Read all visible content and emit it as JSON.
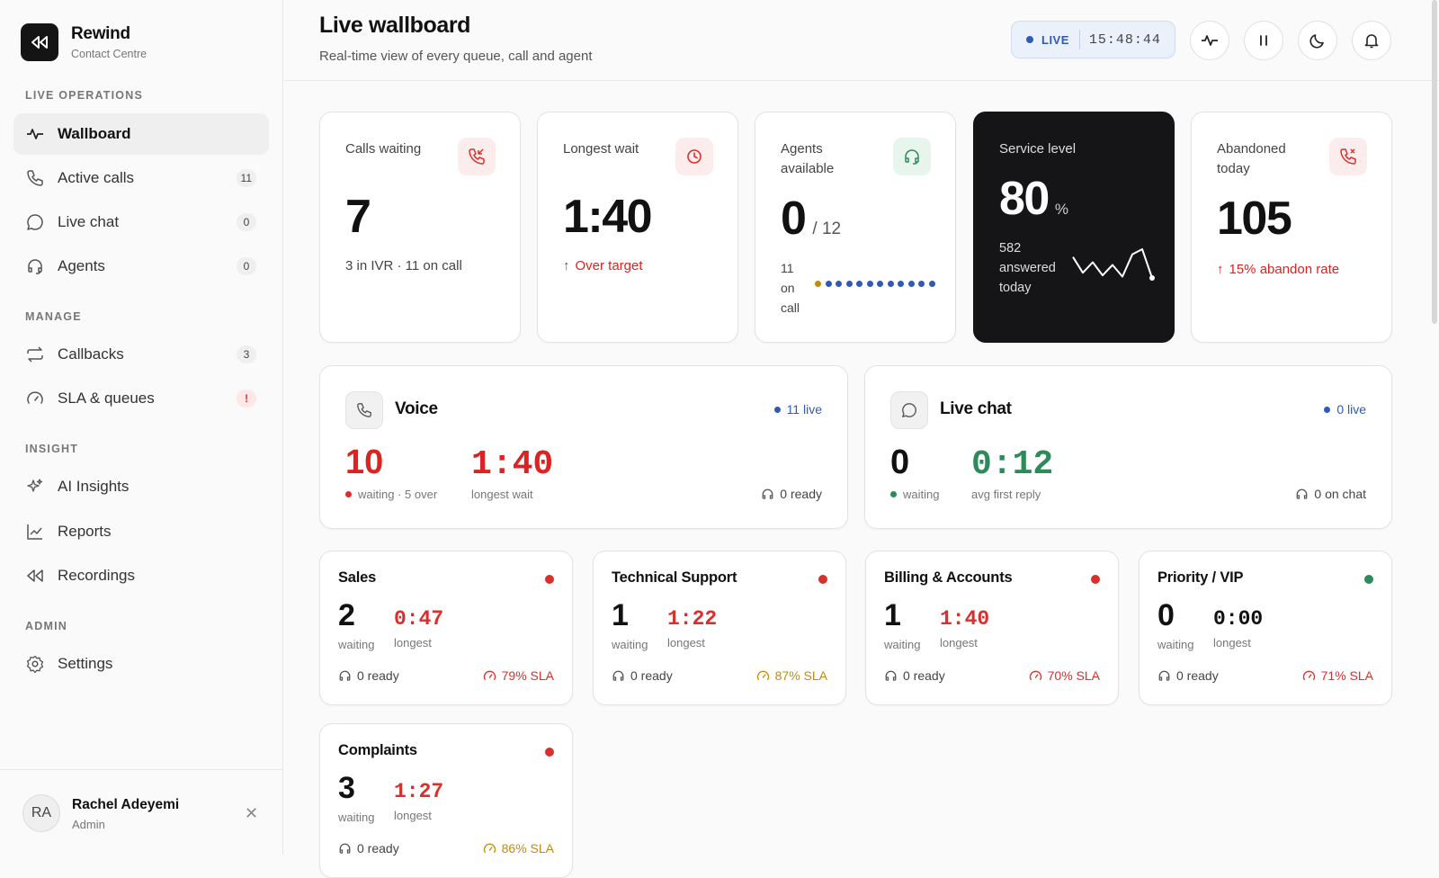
{
  "brand": {
    "name": "Rewind",
    "subtitle": "Contact Centre"
  },
  "sections": {
    "live": "LIVE OPERATIONS",
    "manage": "MANAGE",
    "insight": "INSIGHT",
    "admin": "ADMIN"
  },
  "nav": [
    {
      "label": "Wallboard",
      "icon": "activity-icon",
      "active": true
    },
    {
      "label": "Active calls",
      "icon": "phone-icon",
      "count": "11"
    },
    {
      "label": "Live chat",
      "icon": "chat-icon",
      "count": "0"
    },
    {
      "label": "Agents",
      "icon": "headset-icon",
      "count": "0"
    },
    {
      "label": "Callbacks",
      "icon": "repeat-icon",
      "count": "3"
    },
    {
      "label": "SLA & queues",
      "icon": "gauge-icon",
      "count": "!"
    },
    {
      "label": "AI Insights",
      "icon": "sparkles-icon"
    },
    {
      "label": "Reports",
      "icon": "line-chart-icon"
    },
    {
      "label": "Recordings",
      "icon": "rewind-icon"
    },
    {
      "label": "Settings",
      "icon": "gear-icon"
    }
  ],
  "user": {
    "initials": "RA",
    "name": "Rachel Adeyemi",
    "role": "Admin"
  },
  "header": {
    "title": "Live wallboard",
    "subtitle": "Real-time view of every queue, call and agent",
    "live_label": "LIVE",
    "clock": "15:48:44"
  },
  "kpis": {
    "calls_waiting": {
      "title": "Calls waiting",
      "value": "7",
      "foot": "3 in IVR · 11 on call"
    },
    "longest_wait": {
      "title": "Longest wait",
      "value": "1:40",
      "foot": "Over target"
    },
    "agents": {
      "title": "Agents available",
      "value": "0",
      "total": "/ 12",
      "on_call_num": "11",
      "on_call_a": "on",
      "on_call_b": "call",
      "busy_dots": 11,
      "other_dots": 1
    },
    "service": {
      "title": "Service level",
      "value": "80",
      "unit": "%",
      "foot_a": "582",
      "foot_b": "answered",
      "foot_c": "today",
      "sparkline": [
        18,
        6,
        14,
        4,
        12,
        3,
        20,
        24,
        2
      ]
    },
    "abandoned": {
      "title": "Abandoned today",
      "value": "105",
      "foot": "15% abandon rate"
    }
  },
  "channels": {
    "voice": {
      "title": "Voice",
      "live": "11 live",
      "waiting": "10",
      "waiting_label": "waiting · 5 over",
      "longest": "1:40",
      "longest_label": "longest wait",
      "ready": "0 ready"
    },
    "chat": {
      "title": "Live chat",
      "live": "0 live",
      "waiting": "0",
      "waiting_label": "waiting",
      "reply": "0:12",
      "reply_label": "avg first reply",
      "ready": "0 on chat"
    }
  },
  "queues": [
    {
      "name": "Sales",
      "status": "#d8302c",
      "waiting": "2",
      "waiting_label": "waiting",
      "longest": "0:47",
      "longest_label": "longest",
      "ready": "0 ready",
      "sla": "79% SLA",
      "sla_color": "#d8302c"
    },
    {
      "name": "Technical Support",
      "status": "#d8302c",
      "waiting": "1",
      "waiting_label": "waiting",
      "longest": "1:22",
      "longest_label": "longest",
      "ready": "0 ready",
      "sla": "87% SLA",
      "sla_color": "#c58a0c"
    },
    {
      "name": "Billing & Accounts",
      "status": "#d8302c",
      "waiting": "1",
      "waiting_label": "waiting",
      "longest": "1:40",
      "longest_label": "longest",
      "ready": "0 ready",
      "sla": "70% SLA",
      "sla_color": "#d8302c"
    },
    {
      "name": "Priority / VIP",
      "status": "#2e8a5a",
      "waiting": "0",
      "waiting_label": "waiting",
      "longest": "0:00",
      "longest_label": "longest",
      "ready": "0 ready",
      "sla": "71% SLA",
      "sla_color": "#d8302c"
    },
    {
      "name": "Complaints",
      "status": "#d8302c",
      "waiting": "3",
      "waiting_label": "waiting",
      "longest": "1:27",
      "longest_label": "longest",
      "ready": "0 ready",
      "sla": "86% SLA",
      "sla_color": "#c58a0c"
    }
  ],
  "colors": {
    "red": "#d8302c",
    "green": "#2e8a5a",
    "blue": "#2f5bb5",
    "amber": "#c58a0c"
  }
}
